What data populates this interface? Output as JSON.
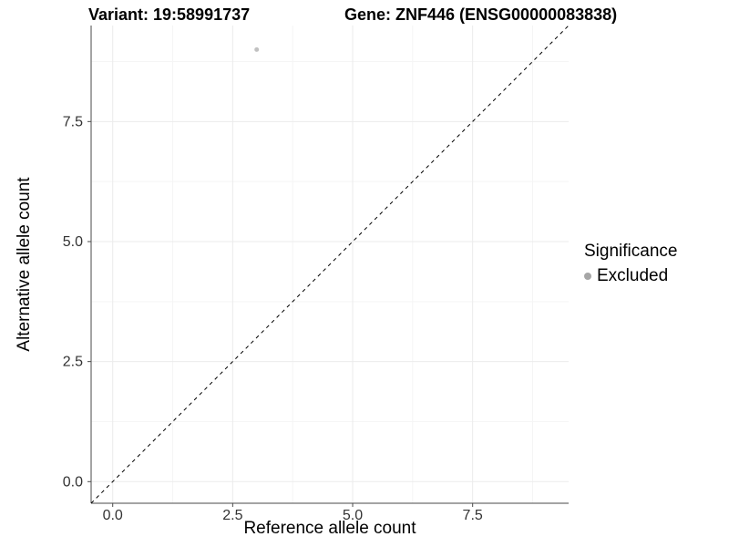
{
  "header": {
    "variant_title": "Variant: 19:58991737",
    "gene_title": "Gene: ZNF446 (ENSG00000083838)"
  },
  "chart_data": {
    "type": "scatter",
    "xlabel": "Reference allele count",
    "ylabel": "Alternative allele count",
    "xlim": [
      -0.45,
      9.5
    ],
    "ylim": [
      -0.45,
      9.5
    ],
    "x_ticks": [
      0.0,
      2.5,
      5.0,
      7.5
    ],
    "x_tick_labels": [
      "0.0",
      "2.5",
      "5.0",
      "7.5"
    ],
    "y_ticks": [
      0.0,
      2.5,
      5.0,
      7.5
    ],
    "y_tick_labels": [
      "0.0",
      "2.5",
      "5.0",
      "7.5"
    ],
    "x_minor_ticks": [
      1.25,
      3.75,
      6.25,
      8.75
    ],
    "y_minor_ticks": [
      1.25,
      3.75,
      6.25,
      8.75
    ],
    "grid": true,
    "points": [
      {
        "x": 3,
        "y": 9,
        "significance": "Excluded"
      }
    ],
    "identity_line": {
      "slope": 1,
      "intercept": 0,
      "style": "dashed",
      "color": "#000000"
    },
    "legend": {
      "position": "right",
      "title": "Significance",
      "entries": [
        {
          "label": "Excluded",
          "color": "#a6a6a6"
        }
      ]
    },
    "colors": {
      "point": "#c1c1c1",
      "grid_major": "#ebebeb",
      "grid_minor": "#f5f5f5",
      "axis_line": "#4a4a4a",
      "tick_label": "#333333",
      "text": "#000000"
    }
  }
}
